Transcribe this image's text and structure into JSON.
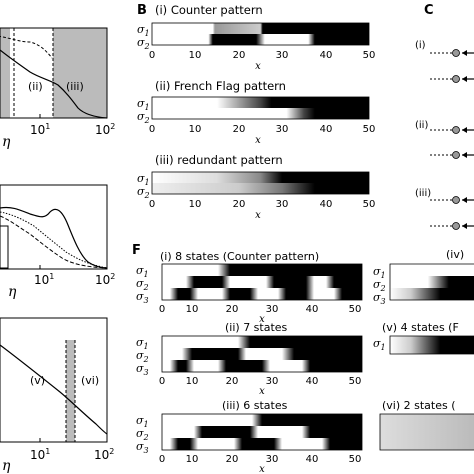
{
  "panel_letters": {
    "B": "B",
    "C": "C",
    "F": "F"
  },
  "panel_b": {
    "titles": [
      "(i) Counter pattern",
      "(ii) French Flag pattern",
      "(iii) redundant pattern"
    ],
    "row_labels": [
      "σ",
      "σ"
    ],
    "row_subs": [
      "1",
      "2"
    ],
    "xticks": [
      "0",
      "10",
      "20",
      "30",
      "40",
      "50"
    ],
    "xlabel": "x"
  },
  "panel_f": {
    "titles": [
      "(i) 8 states (Counter pattern)",
      "(ii) 7 states",
      "(iii) 6 states"
    ],
    "right_titles": [
      "(iv)",
      "(v) 4 states (F",
      "(vi) 2 states ("
    ],
    "row_labels": [
      "σ",
      "σ",
      "σ"
    ],
    "row_subs": [
      "1",
      "2",
      "3"
    ],
    "xticks": [
      "0",
      "10",
      "20",
      "30",
      "40",
      "50"
    ],
    "xlabel": "x"
  },
  "panel_c": {
    "labels": [
      "(i)",
      "(ii)",
      "(iii)"
    ]
  },
  "left_top": {
    "regions": [
      "(ii)",
      "(iii)"
    ],
    "tick_base": "10",
    "tick_exps": [
      "1",
      "2"
    ],
    "xlabel": "η"
  },
  "left_mid": {
    "tick_base": "10",
    "tick_exps": [
      "1",
      "2"
    ],
    "xlabel": "η"
  },
  "left_bot": {
    "regions": [
      "(v)",
      "(vi)"
    ],
    "tick_base": "10",
    "tick_exps": [
      "1",
      "2"
    ],
    "xlabel": "η"
  },
  "chart_data": [
    {
      "type": "heatmap",
      "title": "(i) Counter pattern",
      "xlabel": "x",
      "xlim": [
        0,
        50
      ],
      "rows": [
        "σ1",
        "σ2"
      ],
      "transitions": {
        "σ1": [
          {
            "x": [
              0,
              15
            ],
            "v": "white"
          },
          {
            "x": [
              15,
              25
            ],
            "v": "gray"
          },
          {
            "x": [
              25,
              50
            ],
            "v": "black"
          }
        ],
        "σ2": [
          {
            "x": [
              0,
              13
            ],
            "v": "white"
          },
          {
            "x": [
              13,
              25
            ],
            "v": "black"
          },
          {
            "x": [
              25,
              37
            ],
            "v": "white"
          },
          {
            "x": [
              37,
              50
            ],
            "v": "black"
          }
        ]
      }
    },
    {
      "type": "heatmap",
      "title": "(ii) French Flag pattern",
      "xlabel": "x",
      "xlim": [
        0,
        50
      ],
      "rows": [
        "σ1",
        "σ2"
      ]
    },
    {
      "type": "heatmap",
      "title": "(iii) redundant pattern",
      "xlabel": "x",
      "xlim": [
        0,
        50
      ],
      "rows": [
        "σ1",
        "σ2"
      ]
    },
    {
      "type": "heatmap",
      "title": "(i) 8 states (Counter pattern)",
      "xlabel": "x",
      "xlim": [
        0,
        50
      ],
      "rows": [
        "σ1",
        "σ2",
        "σ3"
      ]
    },
    {
      "type": "heatmap",
      "title": "(ii) 7 states",
      "xlabel": "x",
      "xlim": [
        0,
        50
      ],
      "rows": [
        "σ1",
        "σ2",
        "σ3"
      ]
    },
    {
      "type": "heatmap",
      "title": "(iii) 6 states",
      "xlabel": "x",
      "xlim": [
        0,
        50
      ],
      "rows": [
        "σ1",
        "σ2",
        "σ3"
      ]
    }
  ]
}
